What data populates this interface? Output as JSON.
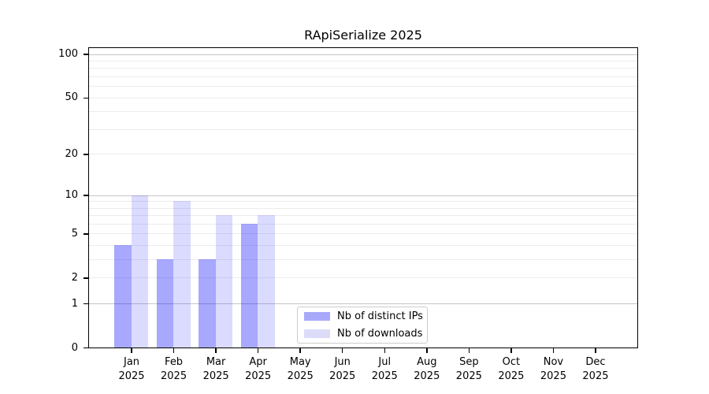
{
  "figure": {
    "title": "RApiSerialize 2025"
  },
  "chart_data": {
    "type": "bar",
    "title": "RApiSerialize 2025",
    "categories": [
      "Jan",
      "Feb",
      "Mar",
      "Apr",
      "May",
      "Jun",
      "Jul",
      "Aug",
      "Sep",
      "Oct",
      "Nov",
      "Dec"
    ],
    "year": "2025",
    "series": [
      {
        "name": "Nb of distinct IPs",
        "color": "#a9a9fb",
        "fill": "rgba(0,0,255,0.34)",
        "values": [
          4,
          3,
          3,
          6,
          null,
          null,
          null,
          null,
          null,
          null,
          null,
          null
        ]
      },
      {
        "name": "Nb of downloads",
        "color": "#dcdcf9",
        "fill": "rgba(0,0,255,0.14)",
        "values": [
          10,
          9,
          7,
          7,
          null,
          null,
          null,
          null,
          null,
          null,
          null,
          null
        ]
      }
    ],
    "xlabel": "",
    "ylabel": "",
    "yscale": "log1p",
    "ylim": [
      0,
      110
    ],
    "y_ticks": [
      0,
      1,
      2,
      5,
      10,
      20,
      50,
      100
    ],
    "y_minor_gridlines": [
      2,
      3,
      4,
      5,
      6,
      7,
      8,
      9,
      20,
      30,
      40,
      50,
      60,
      70,
      80,
      90
    ],
    "y_major_gridlines": [
      1,
      10,
      100
    ],
    "grid_minor_color": "#ececec",
    "grid_major_color": "#c6c6c6",
    "legend_position": "lower center",
    "legend_entries": [
      "Nb of distinct IPs",
      "Nb of downloads"
    ]
  }
}
